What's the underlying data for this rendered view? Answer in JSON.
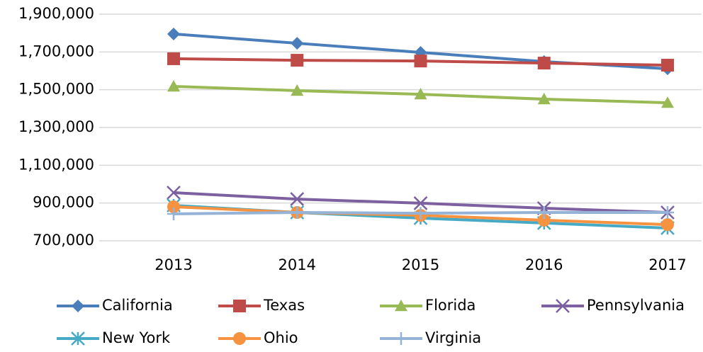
{
  "chart_data": {
    "type": "line",
    "categories": [
      "2013",
      "2014",
      "2015",
      "2016",
      "2017"
    ],
    "series": [
      {
        "name": "California",
        "color": "#4a7ebb",
        "marker": "diamond",
        "values": [
          1795000,
          1746000,
          1697500,
          1649000,
          1611000
        ]
      },
      {
        "name": "Texas",
        "color": "#be4b48",
        "marker": "square",
        "values": [
          1664000,
          1656000,
          1652000,
          1641000,
          1630000
        ]
      },
      {
        "name": "Florida",
        "color": "#98b954",
        "marker": "triangle",
        "values": [
          1517500,
          1495000,
          1476000,
          1450000,
          1431000
        ]
      },
      {
        "name": "Pennsylvania",
        "color": "#7d60a0",
        "marker": "x",
        "values": [
          955000,
          921000,
          899000,
          872500,
          850000
        ]
      },
      {
        "name": "New York",
        "color": "#46aac5",
        "marker": "asterisk",
        "values": [
          887500,
          850000,
          820000,
          794000,
          767500
        ]
      },
      {
        "name": "Ohio",
        "color": "#f69240",
        "marker": "circle",
        "values": [
          880000,
          850000,
          835000,
          809000,
          786000
        ]
      },
      {
        "name": "Virginia",
        "color": "#95b3d7",
        "marker": "plus",
        "values": [
          842500,
          850000,
          846000,
          850000,
          850000
        ]
      }
    ],
    "ylim": [
      700000,
      1900000
    ],
    "yticks": [
      {
        "value": 700000,
        "label": "700,000"
      },
      {
        "value": 900000,
        "label": "900,000"
      },
      {
        "value": 1100000,
        "label": "1,100,000"
      },
      {
        "value": 1300000,
        "label": "1,300,000"
      },
      {
        "value": 1500000,
        "label": "1,500,000"
      },
      {
        "value": 1700000,
        "label": "1,700,000"
      },
      {
        "value": 1900000,
        "label": "1,900,000"
      }
    ],
    "grid": true,
    "legend": "bottom"
  }
}
